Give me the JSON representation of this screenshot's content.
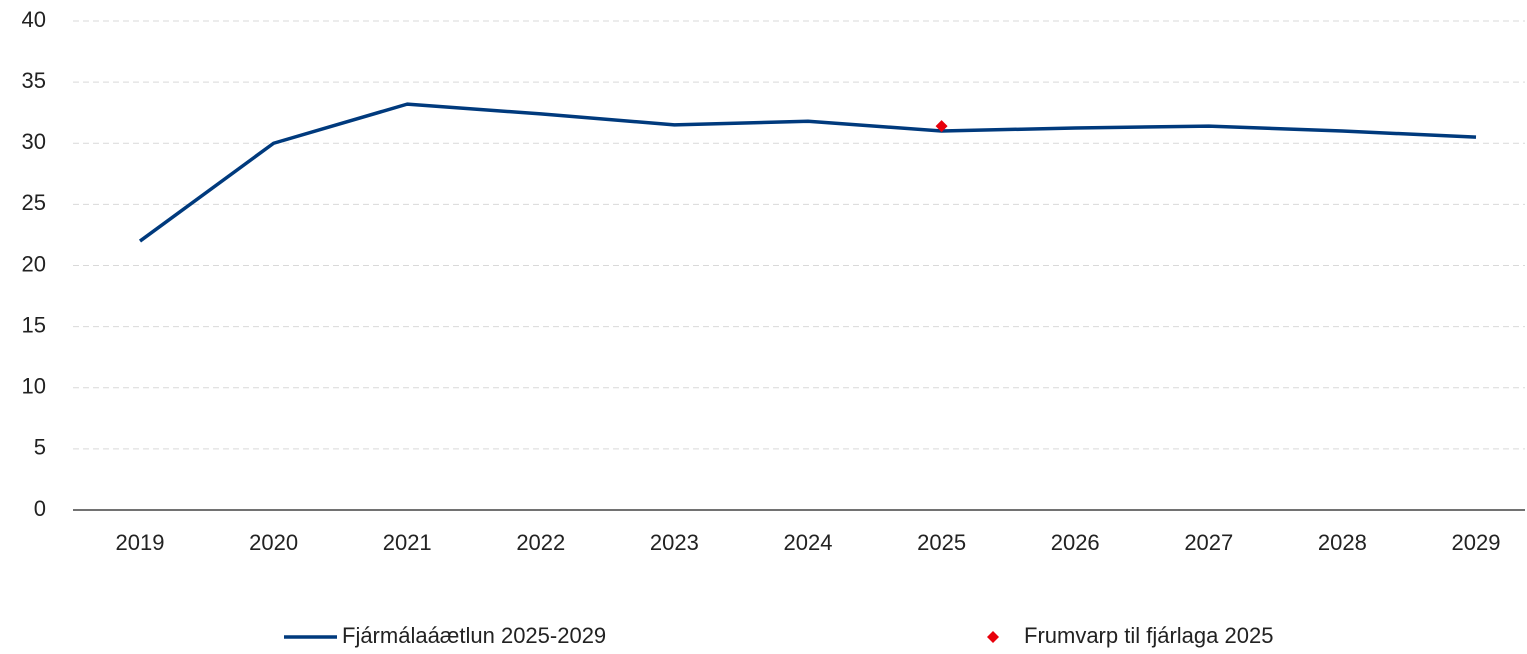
{
  "chart_data": {
    "type": "line",
    "categories": [
      "2019",
      "2020",
      "2021",
      "2022",
      "2023",
      "2024",
      "2025",
      "2026",
      "2027",
      "2028",
      "2029"
    ],
    "series": [
      {
        "name": "Fjármálaáætlun 2025-2029",
        "color": "#003a7d",
        "line": true,
        "marker": null,
        "values": [
          22.0,
          30.0,
          33.2,
          32.4,
          31.5,
          31.8,
          31.0,
          31.25,
          31.4,
          31.0,
          30.5
        ]
      },
      {
        "name": "Frumvarp til fjárlaga 2025",
        "color": "#e8000b",
        "line": false,
        "marker": "diamond",
        "values": [
          null,
          null,
          null,
          null,
          null,
          null,
          31.4,
          null,
          null,
          null,
          null
        ]
      }
    ],
    "ylim": [
      0,
      40
    ],
    "yticks": [
      0,
      5,
      10,
      15,
      20,
      25,
      30,
      35,
      40
    ],
    "grid": true,
    "legend": "bottom"
  }
}
